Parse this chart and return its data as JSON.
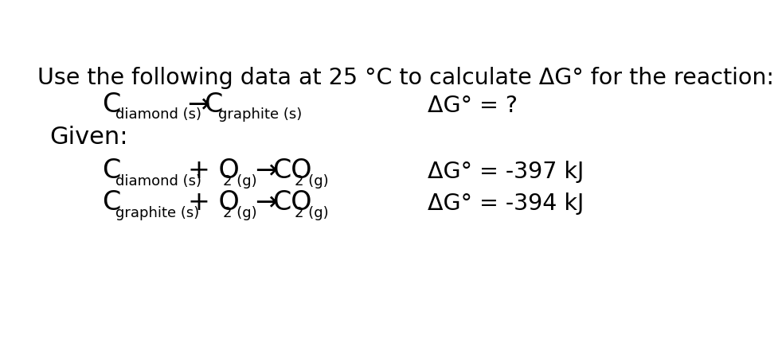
{
  "background_color": "#ffffff",
  "text_color": "#000000",
  "title": "Use the following data at 25 °C to calculate ΔG° for the reaction:",
  "given": "Given:",
  "dg_question": "ΔG° = ?",
  "dg_1": "ΔG° = -397 kJ",
  "dg_2": "ΔG° = -394 kJ",
  "arrow": "→",
  "font_main": 24,
  "font_sub": 13,
  "font_title": 20.5,
  "font_given": 22,
  "font_dg": 20.5
}
